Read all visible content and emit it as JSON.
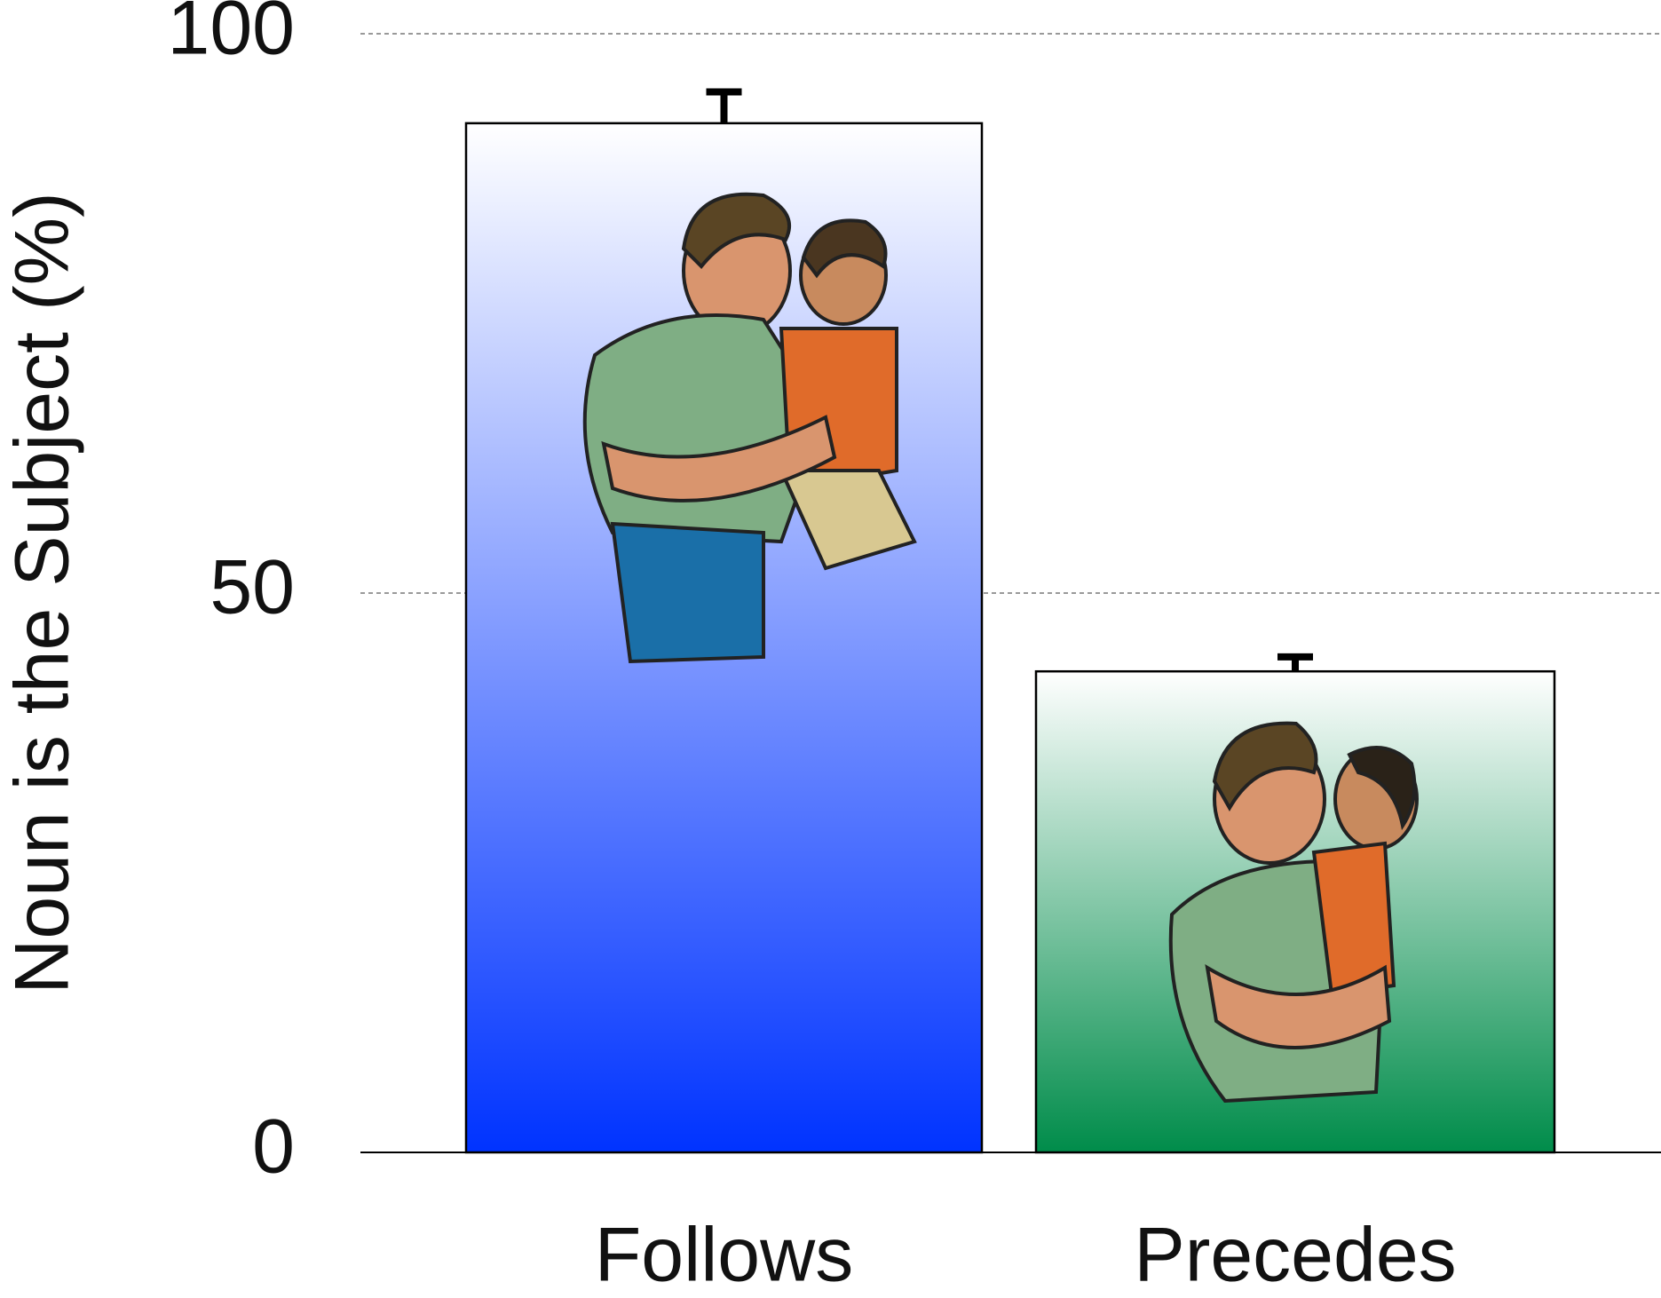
{
  "chart_data": {
    "type": "bar",
    "y_label": "Noun is the Subject (%)",
    "categories": [
      "Follows",
      "Precedes"
    ],
    "values": [
      92,
      43
    ],
    "errors": [
      2.8,
      1.3
    ],
    "colors": [
      "#0033ff",
      "#008c4a"
    ],
    "ylim": [
      0,
      100
    ],
    "yticks": [
      0,
      50,
      100
    ],
    "grid": true
  }
}
